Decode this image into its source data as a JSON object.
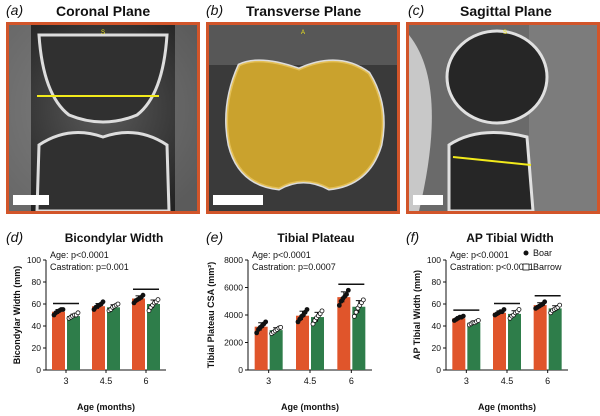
{
  "colors": {
    "boar": "#e0552b",
    "barrow": "#2e7d4a",
    "frame": "#d2552a",
    "overlay": "#e5b52a",
    "measure": "#f2ea1b"
  },
  "panels": {
    "a": {
      "letter": "(a)",
      "title": "Coronal Plane",
      "marker": "S"
    },
    "b": {
      "letter": "(b)",
      "title": "Transverse Plane",
      "marker": "A"
    },
    "c": {
      "letter": "(c)",
      "title": "Sagittal Plane",
      "marker": "S"
    }
  },
  "chart_data": [
    {
      "letter": "(d)",
      "type": "bar",
      "title": "Bicondylar Width",
      "xlabel": "Age (months)",
      "ylabel": "Bicondylar Width (mm)",
      "ylim": [
        0,
        100
      ],
      "yticks": [
        0,
        20,
        40,
        60,
        80,
        100
      ],
      "categories": [
        "3",
        "4.5",
        "6"
      ],
      "series": [
        {
          "name": "Boar",
          "values": [
            53,
            58,
            65
          ],
          "points": [
            [
              50,
              52,
              53,
              54,
              55,
              55
            ],
            [
              55,
              57,
              58,
              59,
              60,
              62
            ],
            [
              61,
              63,
              64,
              65,
              66,
              68
            ]
          ]
        },
        {
          "name": "Barrow",
          "values": [
            49,
            57,
            60
          ],
          "points": [
            [
              47,
              48,
              49,
              50,
              50,
              52
            ],
            [
              54,
              55,
              57,
              58,
              59,
              60
            ],
            [
              54,
              57,
              59,
              61,
              62,
              64
            ]
          ]
        }
      ],
      "stats": [
        "Age: p<0.0001",
        "Castration: p=0.001"
      ],
      "significance": [
        "3",
        "6"
      ]
    },
    {
      "letter": "(e)",
      "type": "bar",
      "title": "Tibial Plateau",
      "xlabel": "Age (months)",
      "ylabel": "Tibial Plateau CSA (mm²)",
      "ylim": [
        0,
        8000
      ],
      "yticks": [
        0,
        2000,
        4000,
        6000,
        8000
      ],
      "categories": [
        "3",
        "4.5",
        "6"
      ],
      "series": [
        {
          "name": "Boar",
          "values": [
            3150,
            3950,
            5300
          ],
          "points": [
            [
              2700,
              2950,
              3100,
              3200,
              3350,
              3500
            ],
            [
              3500,
              3700,
              3900,
              4000,
              4200,
              4400
            ],
            [
              4700,
              5000,
              5200,
              5350,
              5500,
              5800
            ]
          ]
        },
        {
          "name": "Barrow",
          "values": [
            2900,
            3850,
            4600
          ],
          "points": [
            [
              2650,
              2750,
              2850,
              2950,
              3050,
              3100
            ],
            [
              3350,
              3600,
              3800,
              3950,
              4100,
              4300
            ],
            [
              3900,
              4200,
              4500,
              4700,
              4900,
              5100
            ]
          ]
        }
      ],
      "stats": [
        "Age: p<0.0001",
        "Castration: p=0.0007"
      ],
      "significance": [
        "6"
      ]
    },
    {
      "letter": "(f)",
      "type": "bar",
      "title": "AP Tibial Width",
      "xlabel": "Age (months)",
      "ylabel": "AP Tibial Width (mm)",
      "ylim": [
        0,
        100
      ],
      "yticks": [
        0,
        20,
        40,
        60,
        80,
        100
      ],
      "categories": [
        "3",
        "4.5",
        "6"
      ],
      "series": [
        {
          "name": "Boar",
          "values": [
            47,
            52,
            59
          ],
          "points": [
            [
              45,
              46,
              47,
              48,
              48,
              49
            ],
            [
              50,
              51,
              52,
              53,
              53,
              55
            ],
            [
              56,
              57,
              58,
              59,
              60,
              62
            ]
          ]
        },
        {
          "name": "Barrow",
          "values": [
            43,
            51,
            56
          ],
          "points": [
            [
              41,
              42,
              43,
              43,
              44,
              45
            ],
            [
              47,
              49,
              50,
              52,
              53,
              55
            ],
            [
              52,
              54,
              55,
              56,
              57,
              59
            ]
          ]
        }
      ],
      "stats": [
        "Age: p<0.0001",
        "Castration: p<0.0001"
      ],
      "significance": [
        "3",
        "4.5",
        "6"
      ],
      "legend": {
        "entries": [
          "Boar",
          "Barrow"
        ],
        "placement": "top-right"
      }
    }
  ]
}
